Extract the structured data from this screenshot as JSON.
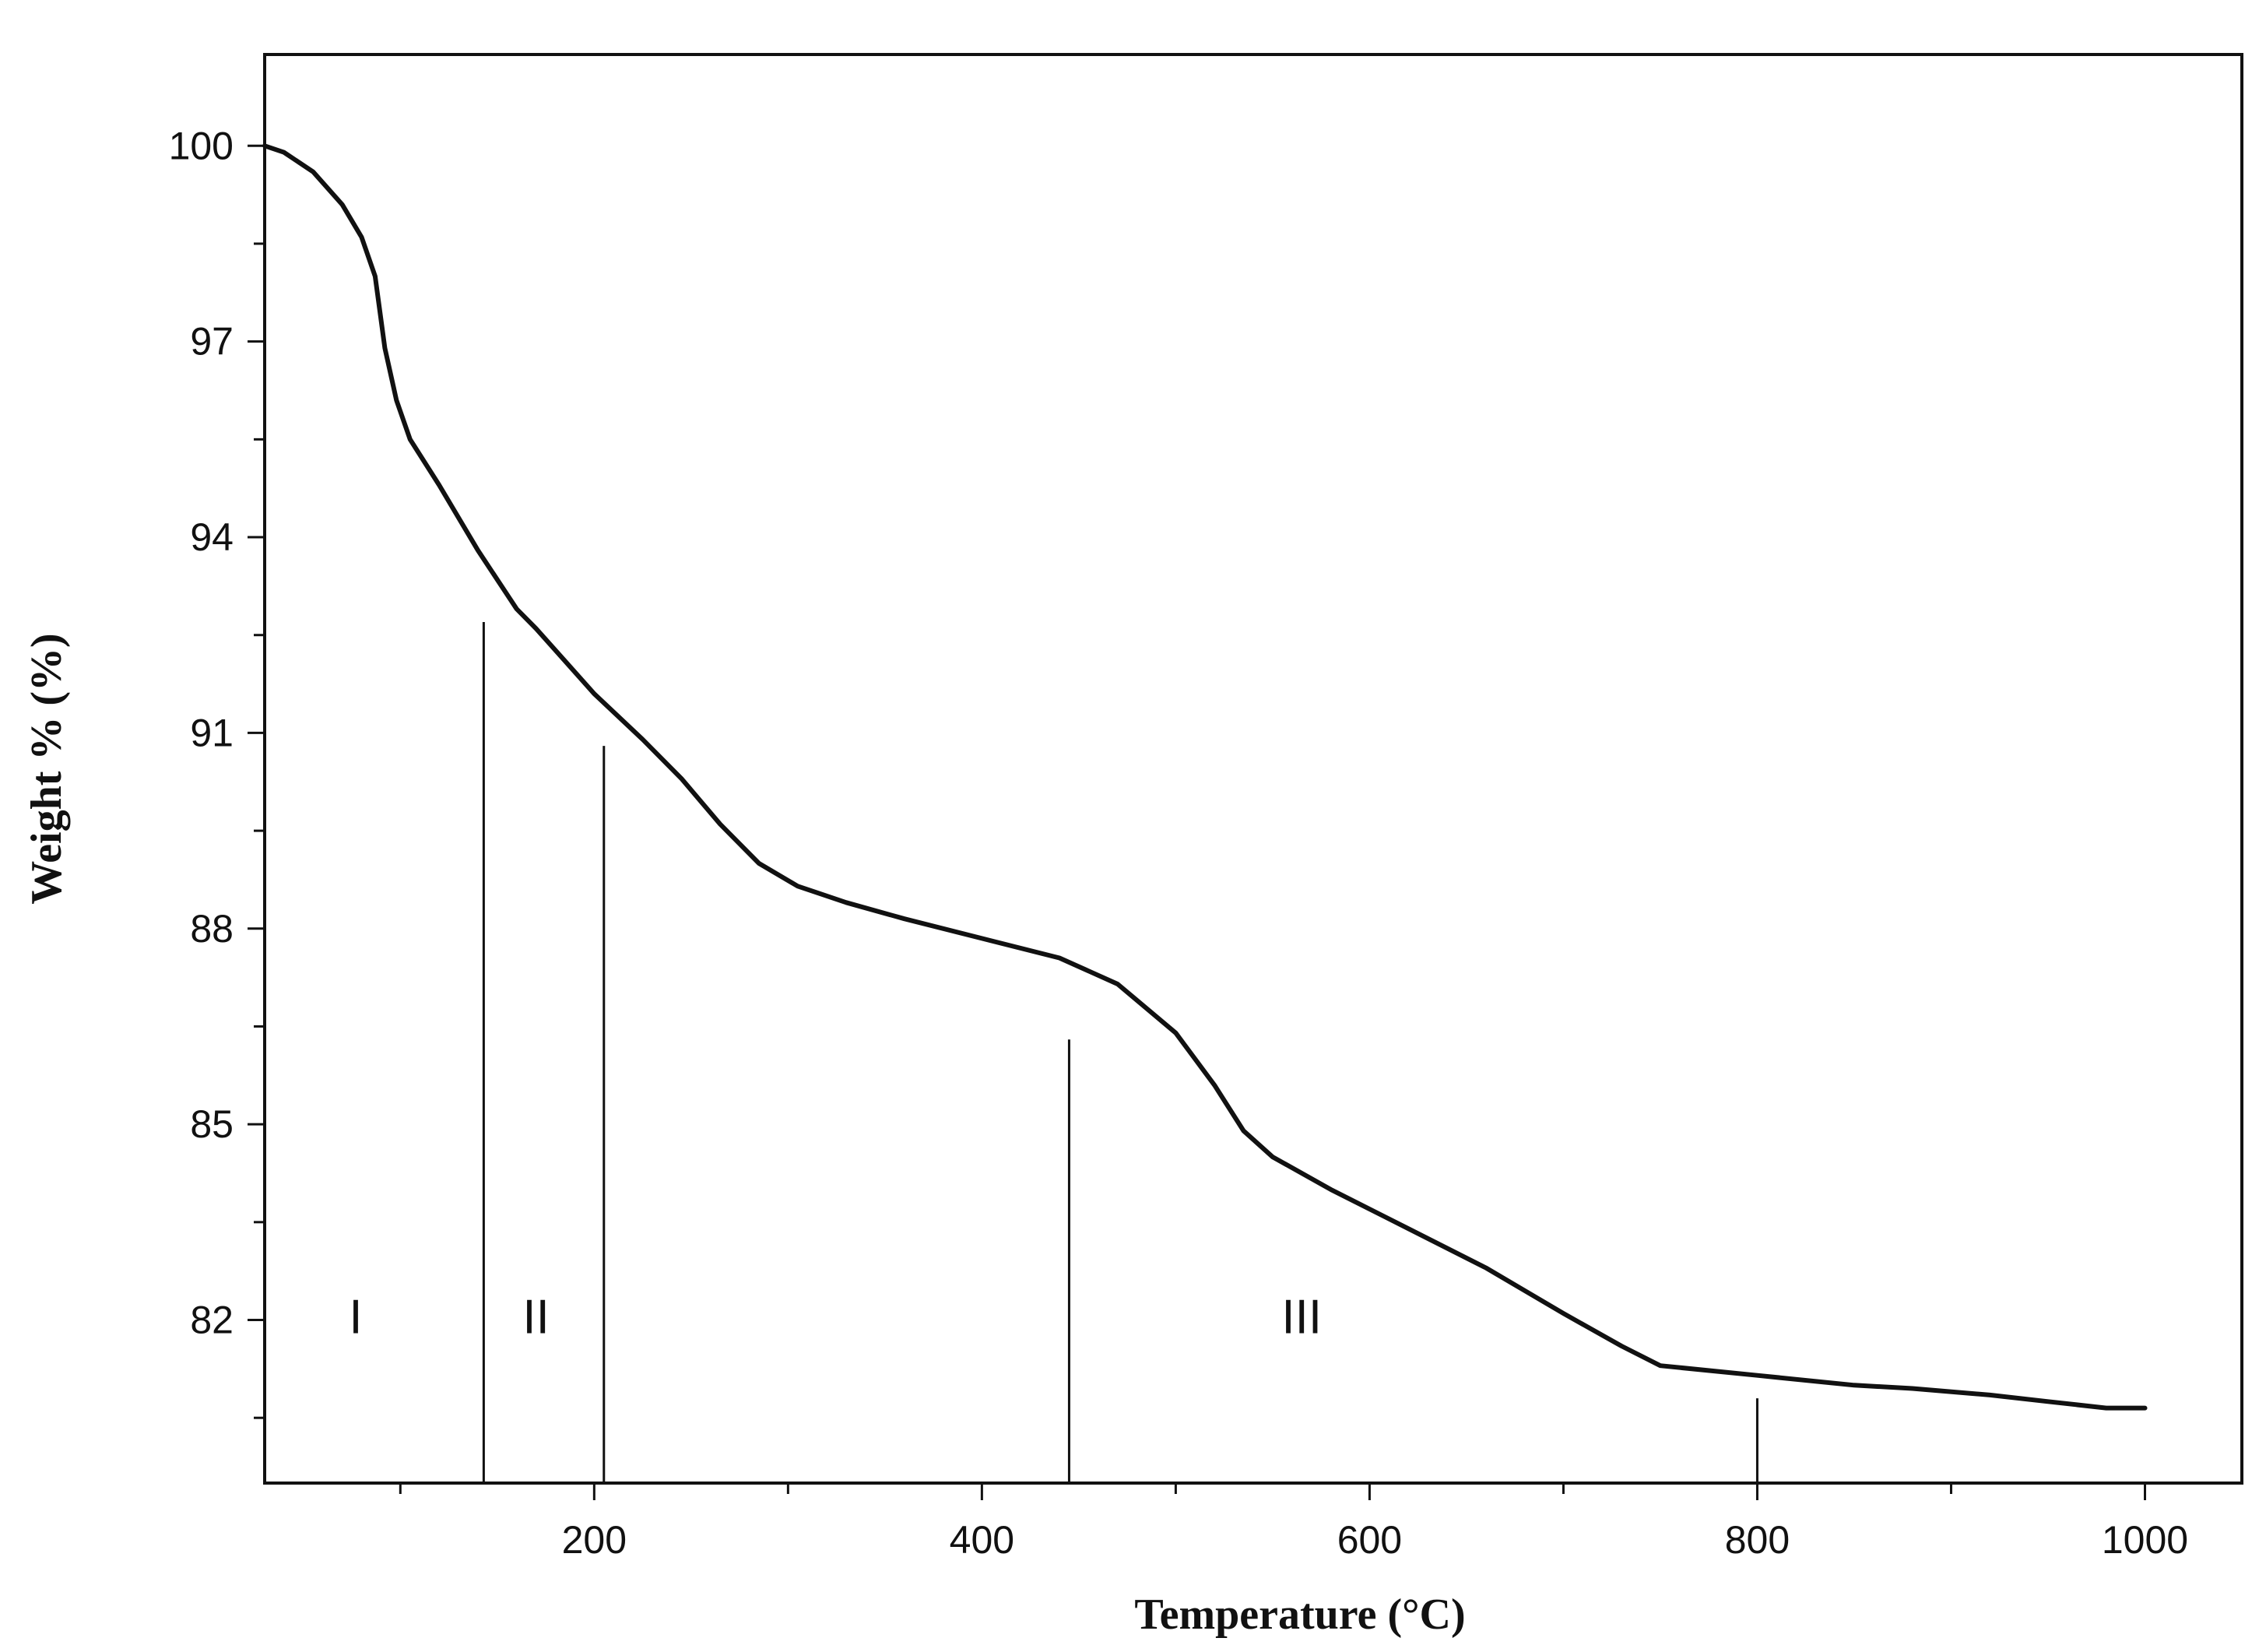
{
  "chart_data": {
    "type": "line",
    "title": "",
    "xlabel": "Temperature (°C)",
    "ylabel": "Weight % (%)",
    "xlim": [
      30,
      1050
    ],
    "ylim": [
      79.5,
      101.4
    ],
    "x_ticks": [
      200,
      400,
      600,
      800,
      1000
    ],
    "x_minor_step": 100,
    "y_ticks": [
      82,
      85,
      88,
      91,
      94,
      97,
      100
    ],
    "y_minor_step": 1.5,
    "grid": false,
    "series": [
      {
        "color": "#111111",
        "points": [
          [
            30,
            100.0
          ],
          [
            40,
            99.9
          ],
          [
            55,
            99.6
          ],
          [
            70,
            99.1
          ],
          [
            80,
            98.6
          ],
          [
            87,
            98.0
          ],
          [
            92,
            96.9
          ],
          [
            98,
            96.1
          ],
          [
            105,
            95.5
          ],
          [
            120,
            94.8
          ],
          [
            140,
            93.8
          ],
          [
            160,
            92.9
          ],
          [
            170,
            92.6
          ],
          [
            185,
            92.1
          ],
          [
            200,
            91.6
          ],
          [
            225,
            90.9
          ],
          [
            245,
            90.3
          ],
          [
            265,
            89.6
          ],
          [
            285,
            89.0
          ],
          [
            305,
            88.65
          ],
          [
            330,
            88.4
          ],
          [
            360,
            88.15
          ],
          [
            400,
            87.85
          ],
          [
            440,
            87.55
          ],
          [
            470,
            87.15
          ],
          [
            500,
            86.4
          ],
          [
            520,
            85.6
          ],
          [
            535,
            84.9
          ],
          [
            550,
            84.5
          ],
          [
            580,
            84.0
          ],
          [
            620,
            83.4
          ],
          [
            660,
            82.8
          ],
          [
            700,
            82.1
          ],
          [
            730,
            81.6
          ],
          [
            750,
            81.3
          ],
          [
            800,
            81.15
          ],
          [
            850,
            81.0
          ],
          [
            880,
            80.95
          ],
          [
            920,
            80.85
          ],
          [
            950,
            80.75
          ],
          [
            980,
            80.65
          ],
          [
            1000,
            80.65
          ]
        ]
      }
    ],
    "region_dividers": [
      {
        "x": 143,
        "y": 92.7
      },
      {
        "x": 205,
        "y": 90.8
      },
      {
        "x": 445,
        "y": 86.3
      },
      {
        "x": 800,
        "y": 80.8
      }
    ],
    "region_labels": [
      {
        "text": "I",
        "x": 77,
        "y": 81.8
      },
      {
        "text": "II",
        "x": 170,
        "y": 81.8
      },
      {
        "text": "III",
        "x": 565,
        "y": 81.8
      }
    ]
  }
}
